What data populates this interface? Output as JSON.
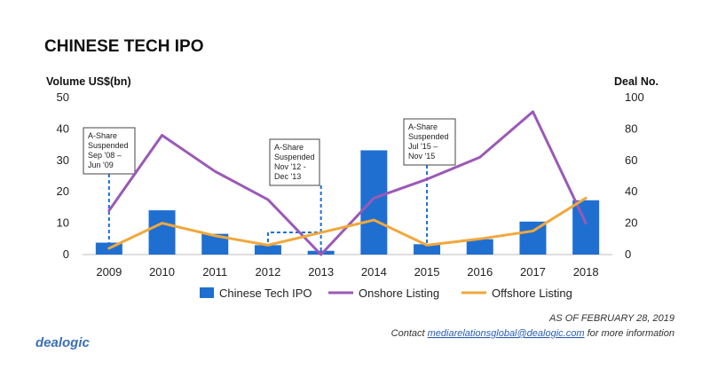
{
  "chart_data": {
    "type": "bar",
    "title": "CHINESE TECH IPO",
    "ylabel": "Volume US$(bn)",
    "y2label": "Deal No.",
    "ylim": [
      0,
      50
    ],
    "y2lim": [
      0,
      100
    ],
    "yticks": [
      0,
      10,
      20,
      30,
      40,
      50
    ],
    "y2ticks": [
      0,
      20,
      40,
      60,
      80,
      100
    ],
    "categories": [
      "2009",
      "2010",
      "2011",
      "2012",
      "2013",
      "2014",
      "2015",
      "2016",
      "2017",
      "2018"
    ],
    "series": [
      {
        "name": "Chinese Tech IPO",
        "kind": "bar",
        "axis": "left",
        "color": "#1f6fd1",
        "values": [
          3.8,
          14.1,
          6.6,
          3.0,
          1.2,
          33.2,
          3.3,
          4.9,
          10.5,
          17.3
        ]
      },
      {
        "name": "Onshore Listing",
        "kind": "line",
        "axis": "right",
        "color": "#9b59b6",
        "values": [
          28,
          76,
          53,
          35,
          0,
          36,
          48,
          62,
          91,
          20
        ]
      },
      {
        "name": "Offshore Listing",
        "kind": "line",
        "axis": "right",
        "color": "#f0a83c",
        "values": [
          4,
          20,
          12,
          6,
          14,
          22,
          6,
          10,
          15,
          36
        ]
      }
    ],
    "annotations": [
      {
        "lines": [
          "A-Share",
          "Suspended",
          "Sep '08 –",
          "Jun '09"
        ]
      },
      {
        "lines": [
          "A-Share",
          "Suspended",
          "Nov '12 -",
          "Dec '13"
        ]
      },
      {
        "lines": [
          "A-Share",
          "Suspended",
          "Jul '15 –",
          "Nov '15"
        ]
      }
    ],
    "grid": false,
    "legend_position": "bottom"
  },
  "footer": {
    "as_of": "AS OF FEBRUARY 28, 2019",
    "contact_prefix": "Contact ",
    "contact_email": "mediarelationsglobal@dealogic.com",
    "contact_suffix": " for more information",
    "logo": "dealogic"
  }
}
